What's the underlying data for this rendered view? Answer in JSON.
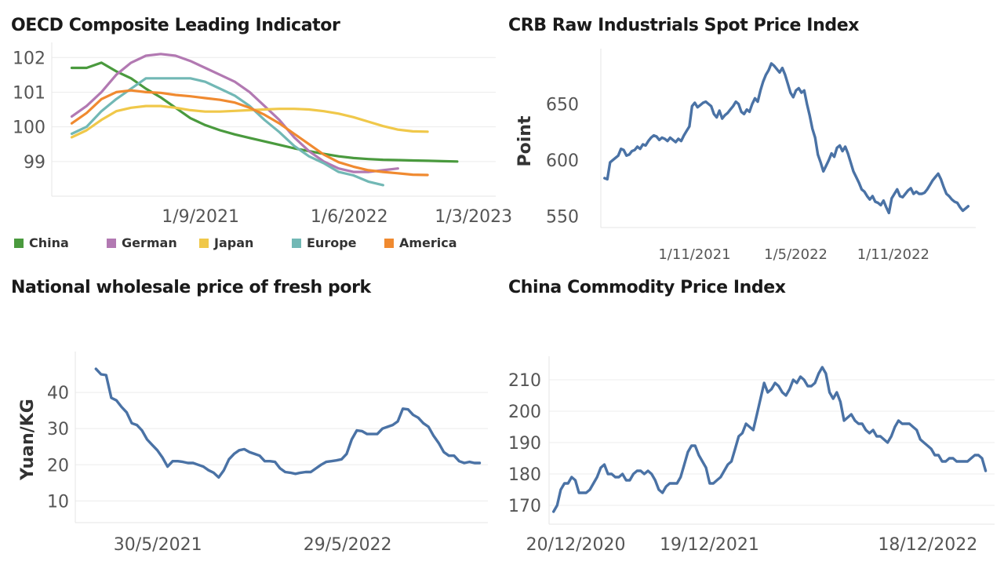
{
  "chart_data": [
    {
      "type": "line",
      "title": "OECD Composite Leading Indicator",
      "xlabel": "",
      "ylabel": "",
      "x_ticks": [
        "1/9/2021",
        "1/6/2022",
        "1/3/2023"
      ],
      "y_ticks": [
        99,
        100,
        101,
        102
      ],
      "ylim": [
        98.0,
        102.3
      ],
      "legend_position": "bottom",
      "grid": "horizontal",
      "x": [
        "2020-11",
        "2020-12",
        "2021-01",
        "2021-02",
        "2021-03",
        "2021-04",
        "2021-05",
        "2021-06",
        "2021-07",
        "2021-08",
        "2021-09",
        "2021-10",
        "2021-11",
        "2021-12",
        "2022-01",
        "2022-02",
        "2022-03",
        "2022-04",
        "2022-05",
        "2022-06",
        "2022-07",
        "2022-08",
        "2022-09",
        "2022-10",
        "2022-11",
        "2022-12",
        "2023-01",
        "2023-02",
        "2023-03"
      ],
      "series": [
        {
          "name": "China",
          "color": "#4a9a3e",
          "values": [
            101.7,
            101.7,
            101.85,
            101.6,
            101.4,
            101.1,
            100.85,
            100.55,
            100.25,
            100.05,
            99.9,
            99.78,
            99.68,
            99.58,
            99.48,
            99.38,
            99.3,
            99.22,
            99.15,
            99.1,
            99.07,
            99.05,
            99.04,
            99.03,
            99.02,
            99.01,
            99.0,
            null,
            null
          ]
        },
        {
          "name": "German",
          "color": "#b279b2",
          "values": [
            100.3,
            100.6,
            101.0,
            101.5,
            101.85,
            102.05,
            102.1,
            102.05,
            101.9,
            101.7,
            101.5,
            101.3,
            101.0,
            100.6,
            100.2,
            99.7,
            99.3,
            99.0,
            98.8,
            98.7,
            98.7,
            98.75,
            98.8,
            null,
            null,
            null,
            null,
            null,
            null
          ]
        },
        {
          "name": "Japan",
          "color": "#f0c84a",
          "values": [
            99.7,
            99.9,
            100.2,
            100.45,
            100.55,
            100.6,
            100.6,
            100.55,
            100.48,
            100.44,
            100.44,
            100.46,
            100.48,
            100.5,
            100.52,
            100.52,
            100.5,
            100.45,
            100.38,
            100.28,
            100.15,
            100.02,
            99.92,
            99.87,
            99.86,
            null,
            null,
            null,
            null
          ]
        },
        {
          "name": "Europe",
          "color": "#72b8b5",
          "values": [
            99.8,
            100.0,
            100.45,
            100.8,
            101.1,
            101.4,
            101.4,
            101.4,
            101.4,
            101.3,
            101.1,
            100.9,
            100.6,
            100.2,
            99.85,
            99.45,
            99.15,
            98.95,
            98.7,
            98.6,
            98.42,
            98.32,
            null,
            null,
            null,
            null,
            null,
            null,
            null
          ]
        },
        {
          "name": "America",
          "color": "#f08a30",
          "values": [
            100.1,
            100.4,
            100.8,
            101.0,
            101.05,
            101.0,
            100.98,
            100.92,
            100.88,
            100.83,
            100.78,
            100.7,
            100.55,
            100.35,
            100.1,
            99.8,
            99.5,
            99.2,
            98.98,
            98.85,
            98.75,
            98.7,
            98.66,
            98.62,
            98.61,
            null,
            null,
            null,
            null
          ]
        }
      ]
    },
    {
      "type": "line",
      "title": "CRB Raw Industrials Spot Price Index",
      "xlabel": "",
      "ylabel": "Point",
      "x_ticks": [
        "1/11/2021",
        "1/5/2022",
        "1/11/2022"
      ],
      "y_ticks": [
        550,
        600,
        650
      ],
      "ylim": [
        540,
        695
      ],
      "grid": "none",
      "series": [
        {
          "name": "",
          "color": "#4a72a5",
          "values": [
            584,
            583,
            598,
            600,
            602,
            604,
            610,
            609,
            604,
            605,
            608,
            609,
            612,
            610,
            614,
            613,
            617,
            620,
            622,
            621,
            618,
            620,
            619,
            617,
            620,
            618,
            616,
            619,
            617,
            622,
            626,
            630,
            648,
            651,
            647,
            649,
            651,
            652,
            650,
            648,
            641,
            638,
            644,
            637,
            640,
            642,
            645,
            648,
            652,
            650,
            643,
            641,
            645,
            643,
            650,
            655,
            652,
            662,
            670,
            676,
            680,
            686,
            684,
            681,
            678,
            682,
            676,
            668,
            660,
            656,
            662,
            664,
            660,
            662,
            650,
            640,
            628,
            620,
            605,
            598,
            590,
            595,
            600,
            606,
            603,
            611,
            613,
            608,
            612,
            606,
            598,
            590,
            585,
            580,
            574,
            572,
            568,
            565,
            568,
            563,
            562,
            560,
            564,
            558,
            553,
            566,
            570,
            574,
            568,
            567,
            570,
            573,
            575,
            570,
            572,
            570,
            570,
            571,
            574,
            578,
            582,
            585,
            588,
            583,
            576,
            570,
            568,
            565,
            563,
            562,
            558,
            555,
            557,
            559
          ]
        }
      ]
    },
    {
      "type": "line",
      "title": "National wholesale price of fresh pork",
      "xlabel": "",
      "ylabel": "Yuan/KG",
      "x_ticks": [
        "30/5/2021",
        "29/5/2022"
      ],
      "y_ticks": [
        10,
        20,
        30,
        40
      ],
      "ylim": [
        4,
        50
      ],
      "grid": "horizontal",
      "series": [
        {
          "name": "",
          "color": "#4a72a5",
          "values": [
            46.5,
            45.0,
            44.8,
            38.5,
            37.8,
            36.0,
            34.5,
            31.5,
            31.0,
            29.5,
            27.0,
            25.5,
            24.0,
            22.0,
            19.5,
            21.0,
            21.0,
            20.8,
            20.5,
            20.5,
            20.0,
            19.5,
            18.5,
            17.8,
            16.5,
            18.5,
            21.5,
            23.0,
            24.0,
            24.3,
            23.5,
            23.0,
            22.5,
            21.0,
            21.0,
            20.8,
            19.0,
            18.0,
            17.8,
            17.5,
            17.8,
            18.0,
            18.0,
            19.0,
            20.0,
            20.8,
            21.0,
            21.2,
            21.5,
            23.0,
            27.0,
            29.5,
            29.3,
            28.5,
            28.5,
            28.5,
            30.0,
            30.5,
            31.0,
            32.0,
            35.5,
            35.3,
            33.8,
            33.0,
            31.5,
            30.5,
            28.0,
            26.0,
            23.5,
            22.5,
            22.5,
            21.0,
            20.5,
            20.8,
            20.5,
            20.5
          ]
        }
      ]
    },
    {
      "type": "line",
      "title": "China Commodity Price Index",
      "xlabel": "",
      "ylabel": "",
      "x_ticks": [
        "20/12/2020",
        "19/12/2021",
        "18/12/2022"
      ],
      "y_ticks": [
        170,
        180,
        190,
        200,
        210
      ],
      "ylim": [
        164,
        216
      ],
      "grid": "horizontal",
      "series": [
        {
          "name": "",
          "color": "#4a72a5",
          "values": [
            168,
            170,
            175,
            177,
            177,
            179,
            178,
            174,
            174,
            174,
            175,
            177,
            179,
            182,
            183,
            180,
            180,
            179,
            179,
            180,
            178,
            178,
            180,
            181,
            181,
            180,
            181,
            180,
            178,
            175,
            174,
            176,
            177,
            177,
            177,
            179,
            183,
            187,
            189,
            189,
            186,
            184,
            182,
            177,
            177,
            178,
            179,
            181,
            183,
            184,
            188,
            192,
            193,
            196,
            195,
            194,
            199,
            204,
            209,
            206,
            207,
            209,
            208,
            206,
            205,
            207,
            210,
            209,
            211,
            210,
            208,
            208,
            209,
            212,
            214,
            212,
            206,
            204,
            206,
            203,
            197,
            198,
            199,
            197,
            196,
            196,
            194,
            193,
            194,
            192,
            192,
            191,
            190,
            192,
            195,
            197,
            196,
            196,
            196,
            195,
            194,
            191,
            190,
            189,
            188,
            186,
            186,
            184,
            184,
            185,
            185,
            184,
            184,
            184,
            184,
            185,
            186,
            186,
            185,
            181
          ]
        }
      ]
    }
  ]
}
